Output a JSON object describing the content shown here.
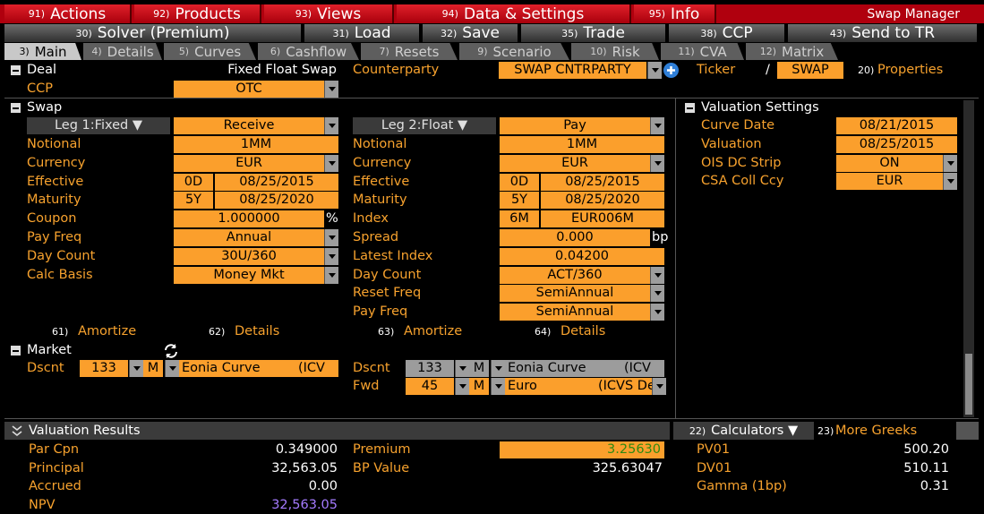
{
  "menu": {
    "items": [
      {
        "num": "91)",
        "label": "Actions"
      },
      {
        "num": "92)",
        "label": "Products"
      },
      {
        "num": "93)",
        "label": "Views"
      },
      {
        "num": "94)",
        "label": "Data & Settings"
      },
      {
        "num": "95)",
        "label": "Info"
      }
    ],
    "title": "Swap Manager"
  },
  "toolbar": [
    {
      "num": "30)",
      "label": "Solver (Premium)"
    },
    {
      "num": "31)",
      "label": "Load"
    },
    {
      "num": "32)",
      "label": "Save"
    },
    {
      "num": "35)",
      "label": "Trade"
    },
    {
      "num": "38)",
      "label": "CCP"
    },
    {
      "num": "43)",
      "label": "Send to TR"
    }
  ],
  "tabs": [
    {
      "num": "3)",
      "label": "Main"
    },
    {
      "num": "4)",
      "label": "Details"
    },
    {
      "num": "5)",
      "label": "Curves"
    },
    {
      "num": "6)",
      "label": "Cashflow"
    },
    {
      "num": "7)",
      "label": "Resets"
    },
    {
      "num": "9)",
      "label": "Scenario"
    },
    {
      "num": "10)",
      "label": "Risk"
    },
    {
      "num": "11)",
      "label": "CVA"
    },
    {
      "num": "12)",
      "label": "Matrix"
    }
  ],
  "deal": {
    "header": "Deal",
    "deal_type": "Fixed Float Swap",
    "counterparty_label": "Counterparty",
    "counterparty": "SWAP CNTRPARTY",
    "ticker_label": "Ticker",
    "ticker_sep": "/",
    "ticker": "SWAP",
    "properties_num": "20)",
    "properties": "Properties",
    "ccp_label": "CCP",
    "ccp": "OTC"
  },
  "swap": {
    "header": "Swap",
    "legs": [
      {
        "title": "Leg 1:Fixed ▼",
        "direction": "Receive",
        "fields": [
          {
            "label": "Notional",
            "values": [
              "1MM"
            ]
          },
          {
            "label": "Currency",
            "values": [
              "EUR"
            ],
            "dropdown": true
          },
          {
            "label": "Effective",
            "values": [
              "0D",
              "08/25/2015"
            ]
          },
          {
            "label": "Maturity",
            "values": [
              "5Y",
              "08/25/2020"
            ]
          },
          {
            "label": "Coupon",
            "values": [
              "1.000000"
            ],
            "unit": "%"
          },
          {
            "label": "Pay Freq",
            "values": [
              "Annual"
            ],
            "dropdown": true
          },
          {
            "label": "Day Count",
            "values": [
              "30U/360"
            ],
            "dropdown": true
          },
          {
            "label": "Calc Basis",
            "values": [
              "Money Mkt"
            ],
            "dropdown": true
          }
        ],
        "links": [
          {
            "num": "61)",
            "label": "Amortize"
          },
          {
            "num": "62)",
            "label": "Details"
          }
        ]
      },
      {
        "title": "Leg 2:Float ▼",
        "direction": "Pay",
        "fields": [
          {
            "label": "Notional",
            "values": [
              "1MM"
            ]
          },
          {
            "label": "Currency",
            "values": [
              "EUR"
            ],
            "dropdown": true
          },
          {
            "label": "Effective",
            "values": [
              "0D",
              "08/25/2015"
            ]
          },
          {
            "label": "Maturity",
            "values": [
              "5Y",
              "08/25/2020"
            ]
          },
          {
            "label": "Index",
            "values": [
              "6M",
              "EUR006M"
            ]
          },
          {
            "label": "Spread",
            "values": [
              "0.000"
            ],
            "unit": "bp"
          },
          {
            "label": "Latest Index",
            "values": [
              "0.04200"
            ]
          },
          {
            "label": "Day Count",
            "values": [
              "ACT/360"
            ],
            "dropdown": true
          },
          {
            "label": "Reset Freq",
            "values": [
              "SemiAnnual"
            ],
            "dropdown": true
          },
          {
            "label": "Pay Freq",
            "values": [
              "SemiAnnual"
            ],
            "dropdown": true
          }
        ],
        "links": [
          {
            "num": "63)",
            "label": "Amortize"
          },
          {
            "num": "64)",
            "label": "Details"
          }
        ]
      }
    ]
  },
  "valuation_settings": {
    "header": "Valuation Settings",
    "fields": [
      {
        "label": "Curve Date",
        "value": "08/21/2015"
      },
      {
        "label": "Valuation",
        "value": "08/25/2015"
      },
      {
        "label": "OIS DC Strip",
        "value": "ON",
        "dropdown": true
      },
      {
        "label": "CSA Coll Ccy",
        "value": "EUR",
        "dropdown": true
      }
    ]
  },
  "market": {
    "header": "Market",
    "legs": [
      [
        {
          "label": "Dscnt",
          "tenor": "133",
          "unit": "M",
          "curve": "Eonia Curve",
          "source": "(ICV"
        }
      ],
      [
        {
          "label": "Dscnt",
          "tenor": "133",
          "unit": "M",
          "curve": "Eonia Curve",
          "source": "(ICV"
        },
        {
          "label": "Fwd",
          "tenor": "45",
          "unit": "M",
          "curve": "Euro",
          "source": "(ICVS Defau"
        }
      ]
    ]
  },
  "results": {
    "header": "Valuation Results",
    "calculators_num": "22)",
    "calculators": "Calculators ▼",
    "greeks_num": "23)",
    "greeks": "More Greeks",
    "columns": [
      [
        {
          "label": "Par Cpn",
          "value": "0.349000"
        },
        {
          "label": "Principal",
          "value": "32,563.05"
        },
        {
          "label": "Accrued",
          "value": "0.00"
        },
        {
          "label": "NPV",
          "value": "32,563.05"
        }
      ],
      [
        {
          "label": "Premium",
          "value": "3.25630"
        },
        {
          "label": "BP Value",
          "value": "325.63047"
        }
      ],
      [
        {
          "label": "PV01",
          "value": "500.20"
        },
        {
          "label": "DV01",
          "value": "510.11"
        },
        {
          "label": "Gamma (1bp)",
          "value": "0.31"
        }
      ]
    ]
  }
}
